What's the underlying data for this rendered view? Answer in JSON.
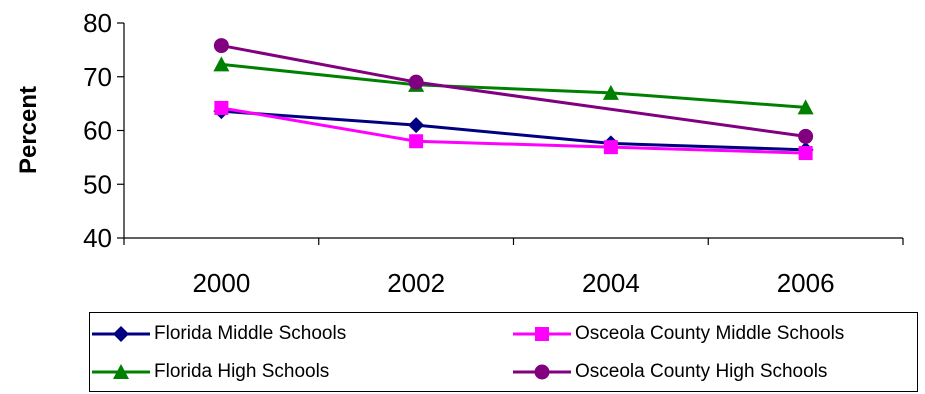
{
  "chart_data": {
    "type": "line",
    "title": "",
    "xlabel": "",
    "ylabel": "Percent",
    "categories": [
      "2000",
      "2002",
      "2004",
      "2006"
    ],
    "ylim": [
      40,
      80
    ],
    "yticks": [
      40,
      50,
      60,
      70,
      80
    ],
    "grid": false,
    "legend_placement": "bottom",
    "series": [
      {
        "name": "Florida Middle Schools",
        "values": [
          63.6,
          61.0,
          57.6,
          56.4
        ],
        "color": "#000080",
        "marker": "diamond"
      },
      {
        "name": "Osceola County Middle Schools",
        "values": [
          64.2,
          58.0,
          56.9,
          55.8
        ],
        "color": "#ff00ff",
        "marker": "square"
      },
      {
        "name": "Florida High Schools",
        "values": [
          72.3,
          68.5,
          67.0,
          64.3
        ],
        "color": "#008000",
        "marker": "triangle"
      },
      {
        "name": "Osceola County High Schools",
        "values": [
          75.8,
          69.0,
          null,
          58.9
        ],
        "color": "#800080",
        "marker": "circle"
      }
    ]
  }
}
